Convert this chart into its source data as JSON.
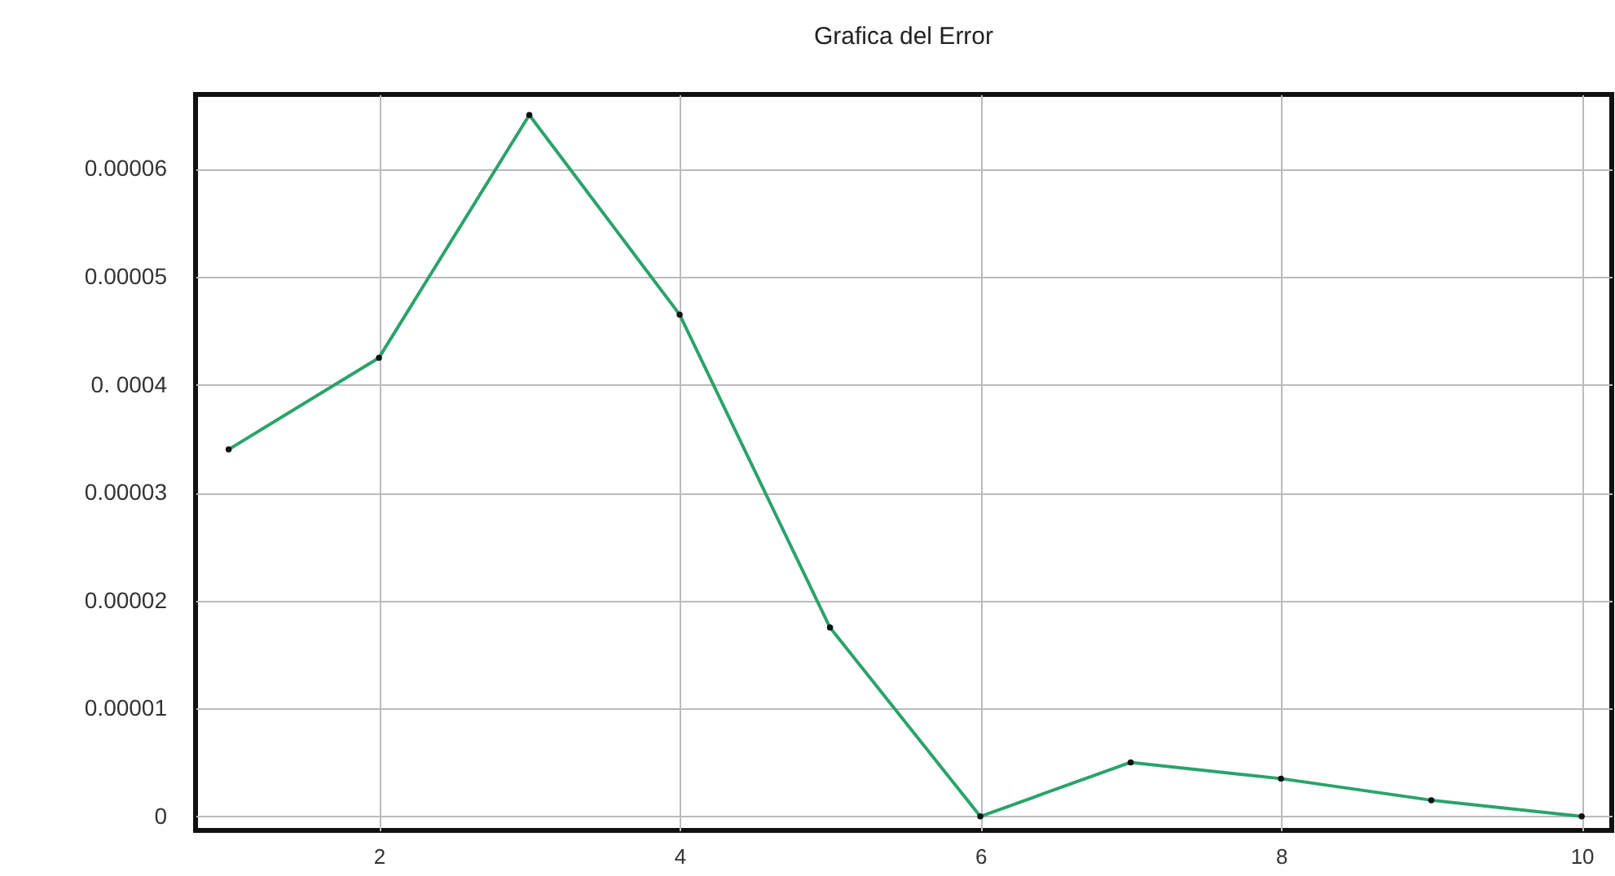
{
  "chart_data": {
    "type": "line",
    "title": "Grafica del Error",
    "x": [
      1,
      2,
      3,
      4,
      5,
      6,
      7,
      8,
      9,
      10
    ],
    "series": [
      {
        "color": "#2aa36b",
        "values": [
          3.4e-05,
          4.25e-05,
          6.5e-05,
          4.65e-05,
          1.75e-05,
          0,
          5e-06,
          3.5e-06,
          1.5e-06,
          0
        ]
      }
    ],
    "xlim": [
      0.78,
      10.2
    ],
    "xticks": [
      2,
      4,
      6,
      8,
      10
    ],
    "ylim": [
      -1.3e-06,
      6.69e-05
    ],
    "yticks": [
      0,
      {
        "value": 1e-05,
        "label": "0.00001"
      },
      {
        "value": 2e-05,
        "label": "0.00002"
      },
      {
        "value": 3e-05,
        "label": "0.00003"
      },
      {
        "value": 4e-05,
        "label": "0.  0004"
      },
      {
        "value": 5e-05,
        "label": "0.00005"
      },
      {
        "value": 6e-05,
        "label": "0.00006"
      }
    ],
    "grid": true,
    "marker": "circle",
    "line_style": "solid"
  }
}
